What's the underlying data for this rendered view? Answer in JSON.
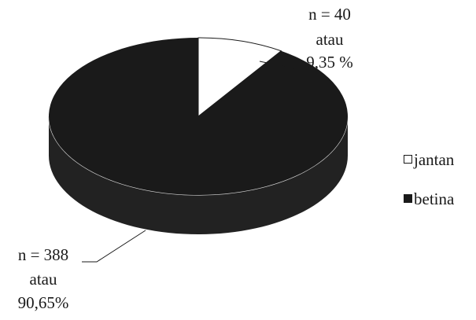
{
  "chart_data": {
    "type": "pie",
    "style": "3d",
    "title": "",
    "slices": [
      {
        "name": "jantan",
        "n": 40,
        "percent": 9.35,
        "color": "#ffffff",
        "label_lines": [
          "n = 40",
          "atau",
          "9,35 %"
        ]
      },
      {
        "name": "betina",
        "n": 388,
        "percent": 90.65,
        "color": "#1a1a1a",
        "label_lines": [
          "n = 388",
          "atau",
          "90,65%"
        ]
      }
    ],
    "legend": {
      "placement": "right",
      "items": [
        {
          "label": "jantan",
          "color": "#ffffff"
        },
        {
          "label": "betina",
          "color": "#1a1a1a"
        }
      ]
    }
  }
}
